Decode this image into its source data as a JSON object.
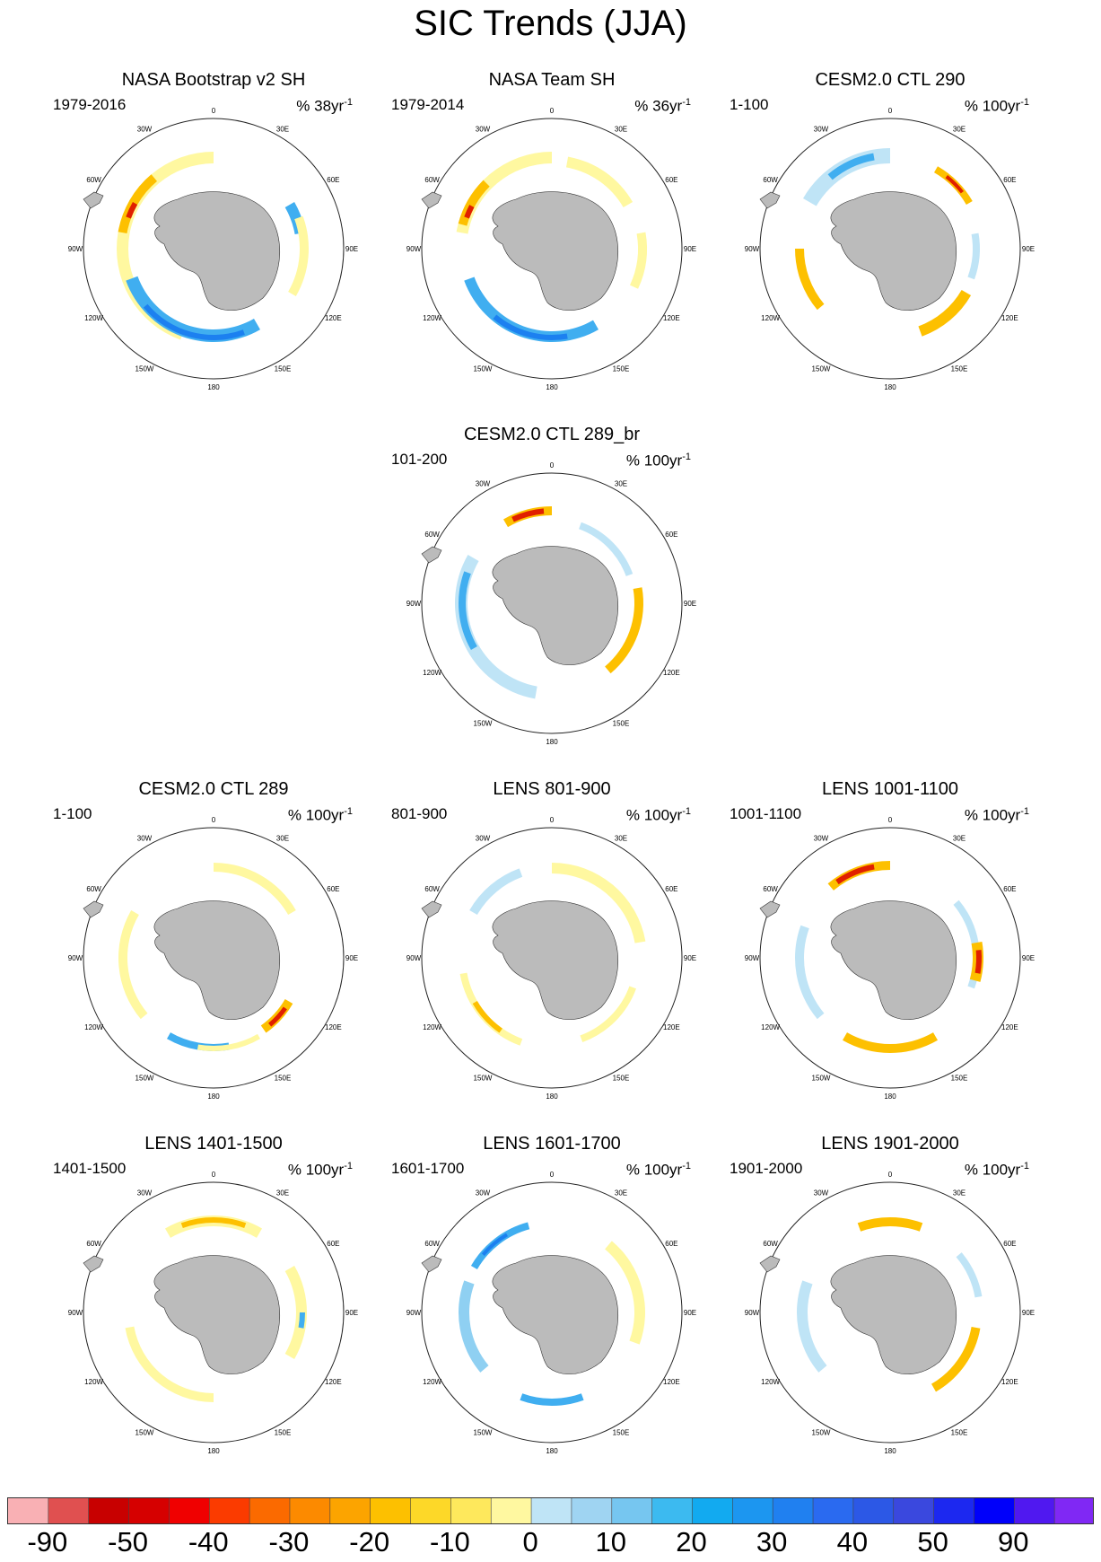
{
  "title": "SIC Trends (JJA)",
  "units_prefix": "%",
  "panels": [
    {
      "name": "NASA Bootstrap v2 SH",
      "period": "1979-2016",
      "rate": "38yr",
      "rate_exp": "-1",
      "style": "obs1"
    },
    {
      "name": "NASA Team SH",
      "period": "1979-2014",
      "rate": "36yr",
      "rate_exp": "-1",
      "style": "obs2"
    },
    {
      "name": "CESM2.0 CTL 290",
      "period": "1-100",
      "rate": "100yr",
      "rate_exp": "-1",
      "style": "m290"
    },
    {
      "name": "CESM2.0 CTL 289_br",
      "period": "101-200",
      "rate": "100yr",
      "rate_exp": "-1",
      "style": "m289br"
    },
    {
      "name": "CESM2.0 CTL 289",
      "period": "1-100",
      "rate": "100yr",
      "rate_exp": "-1",
      "style": "m289"
    },
    {
      "name": "LENS 801-900",
      "period": "801-900",
      "rate": "100yr",
      "rate_exp": "-1",
      "style": "l801"
    },
    {
      "name": "LENS 1001-1100",
      "period": "1001-1100",
      "rate": "100yr",
      "rate_exp": "-1",
      "style": "l1001"
    },
    {
      "name": "LENS 1401-1500",
      "period": "1401-1500",
      "rate": "100yr",
      "rate_exp": "-1",
      "style": "l1401"
    },
    {
      "name": "LENS 1601-1700",
      "period": "1601-1700",
      "rate": "100yr",
      "rate_exp": "-1",
      "style": "l1601"
    },
    {
      "name": "LENS 1901-2000",
      "period": "1901-2000",
      "rate": "100yr",
      "rate_exp": "-1",
      "style": "l1901"
    }
  ],
  "longitude_labels": [
    "0",
    "30E",
    "60E",
    "90E",
    "120E",
    "150E",
    "180",
    "150W",
    "120W",
    "90W",
    "60W",
    "30W"
  ],
  "colorbar": {
    "colors": [
      "#f9b0b4",
      "#e05050",
      "#c80000",
      "#d60000",
      "#f00000",
      "#fb3b00",
      "#fb6a00",
      "#fc8a00",
      "#fca400",
      "#fdc000",
      "#fdd828",
      "#fee85c",
      "#fff8a0",
      "#bfe4f6",
      "#9fd4f2",
      "#76c6f0",
      "#3cbaf0",
      "#12aaf0",
      "#1c96f0",
      "#2080f0",
      "#2a6af0",
      "#2c58e6",
      "#3a48de",
      "#1c28f0",
      "#0000fa",
      "#5018f0",
      "#8028f4"
    ],
    "labels": [
      "-90",
      "-50",
      "-40",
      "-30",
      "-20",
      "-10",
      "0",
      "10",
      "20",
      "30",
      "40",
      "50",
      "90"
    ]
  }
}
